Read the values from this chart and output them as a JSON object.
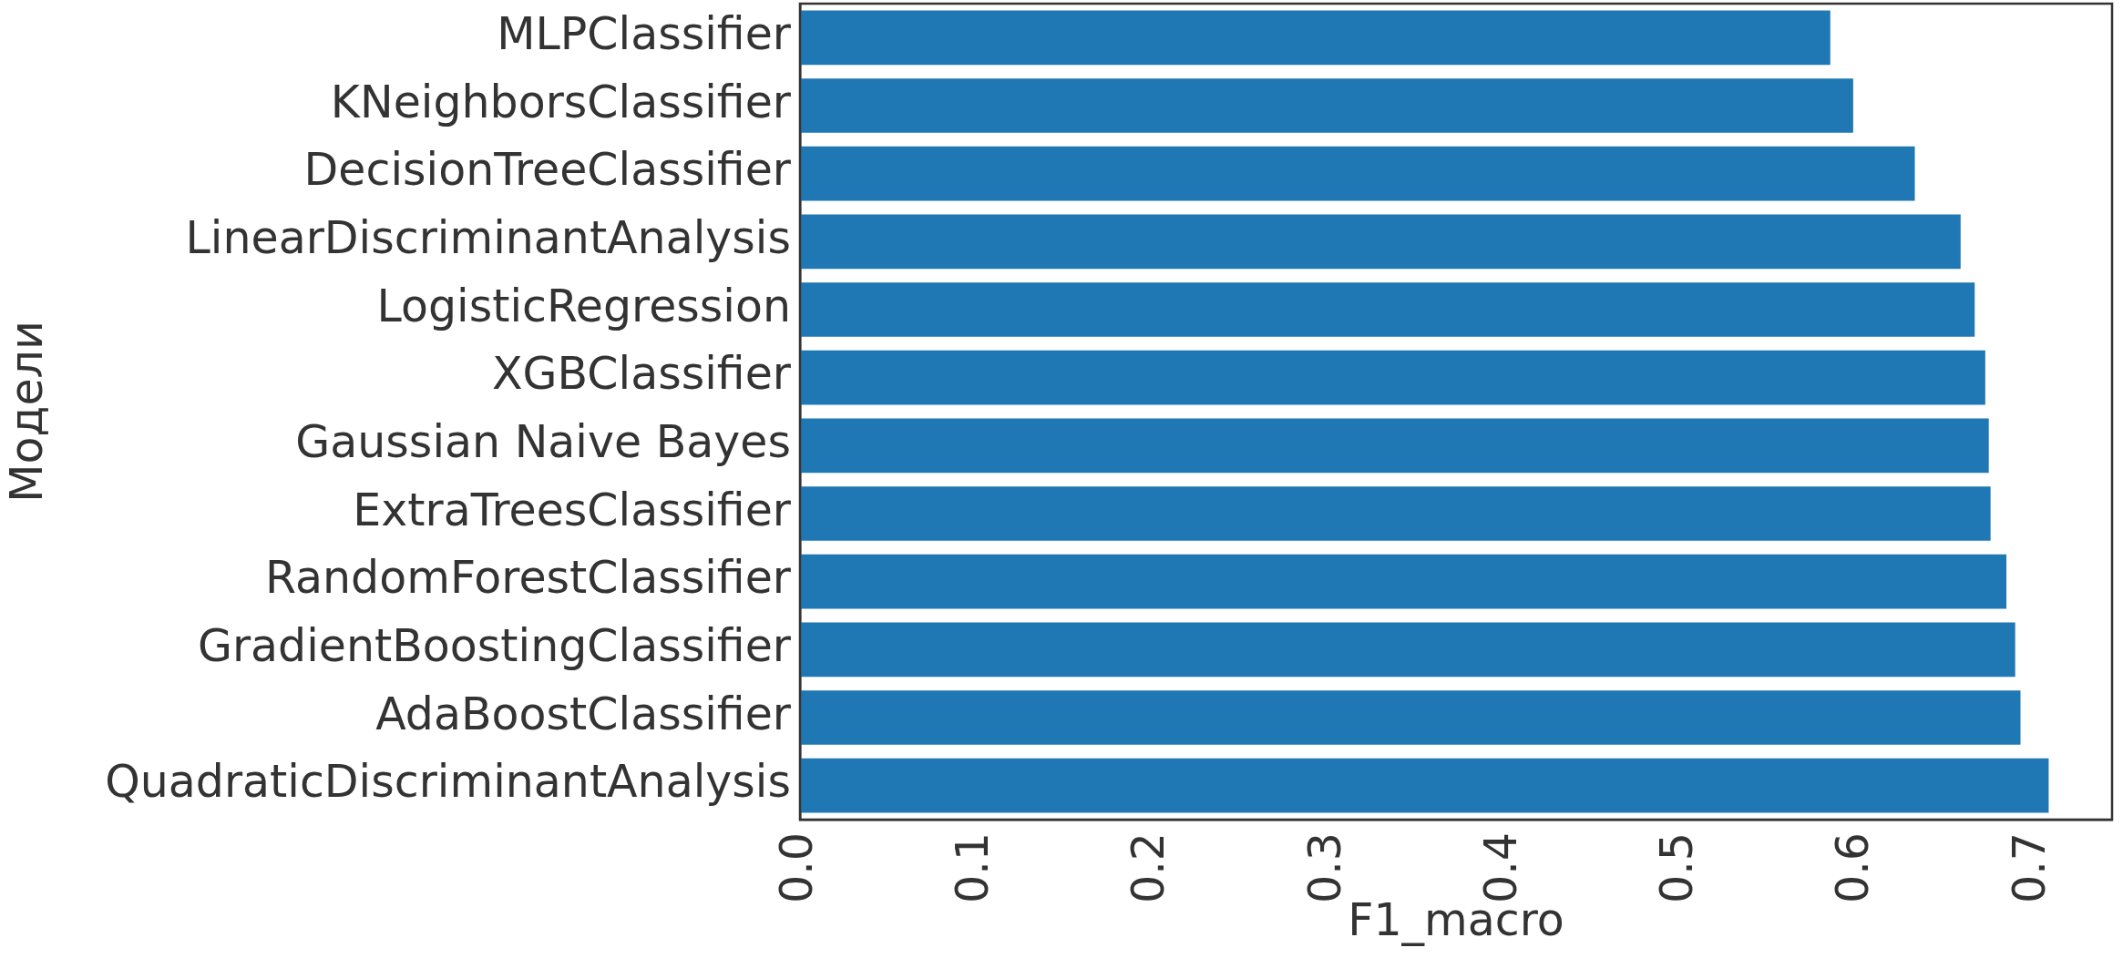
{
  "chart_data": {
    "type": "bar",
    "orientation": "horizontal",
    "xlabel": "F1_macro",
    "ylabel": "Модели",
    "categories": [
      "MLPClassifier",
      "KNeighborsClassifier",
      "DecisionTreeClassifier",
      "LinearDiscriminantAnalysis",
      "LogisticRegression",
      "XGBClassifier",
      "Gaussian Naive Bayes",
      "ExtraTreesClassifier",
      "RandomForestClassifier",
      "GradientBoostingClassifier",
      "AdaBoostClassifier",
      "QuadraticDiscriminantAnalysis"
    ],
    "values": [
      0.585,
      0.598,
      0.633,
      0.659,
      0.667,
      0.673,
      0.675,
      0.676,
      0.685,
      0.69,
      0.693,
      0.709
    ],
    "color": "#1f77b4",
    "xlim": [
      0,
      0.745
    ],
    "xticks": [
      {
        "value": 0,
        "label": "0.0"
      },
      0.1,
      0.2,
      0.3,
      0.4,
      0.5,
      0.6,
      0.7
    ],
    "grid": false,
    "legend": false
  }
}
